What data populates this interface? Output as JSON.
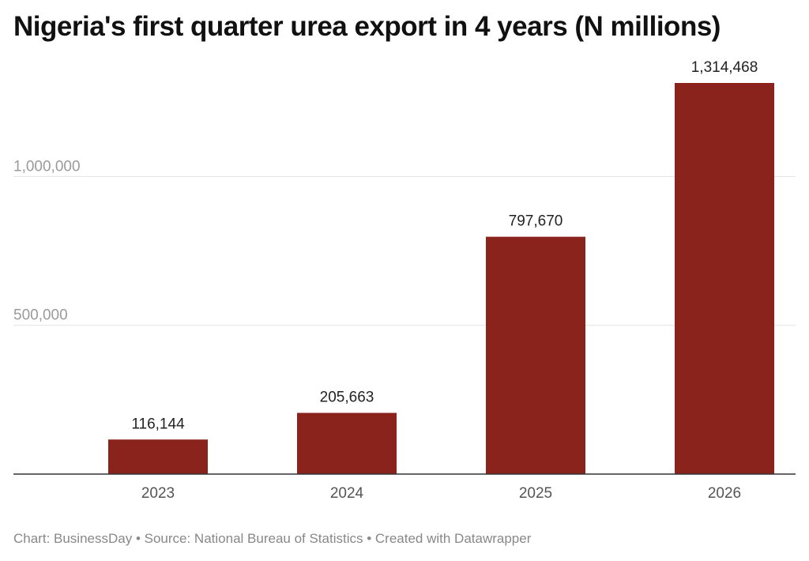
{
  "chart_data": {
    "type": "bar",
    "title": "Nigeria's first quarter urea export in 4 years (N millions)",
    "categories": [
      "2023",
      "2024",
      "2025",
      "2026"
    ],
    "values": [
      116144,
      205663,
      797670,
      1314468
    ],
    "value_labels": [
      "116,144",
      "205,663",
      "797,670",
      "1,314,468"
    ],
    "yticks": [
      500000,
      1000000
    ],
    "ytick_labels": [
      "500,000",
      "1,000,000"
    ],
    "ylim": [
      0,
      1314468
    ],
    "xlabel": "",
    "ylabel": "",
    "grid": true,
    "bar_color": "#8a231c"
  },
  "footer": {
    "text": "Chart: BusinessDay • Source: National Bureau of Statistics • Created with Datawrapper"
  }
}
